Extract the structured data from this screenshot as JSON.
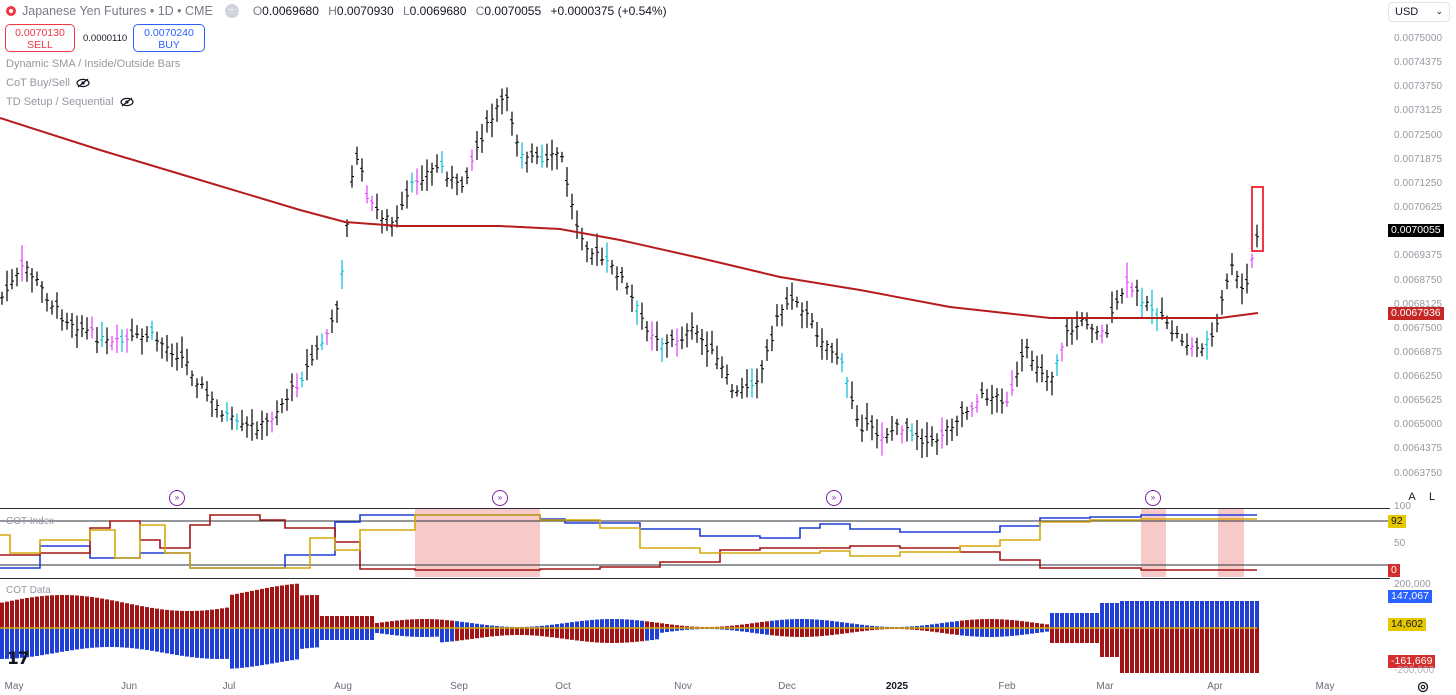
{
  "header": {
    "symbol_title": "Japanese Yen Futures • 1D • CME",
    "collapse_glyph": "−",
    "ohlc": {
      "o_label": "O",
      "o_value": "0.0069680",
      "h_label": "H",
      "h_value": "0.0070930",
      "l_label": "L",
      "l_value": "0.0069680",
      "c_label": "C",
      "c_value": "0.0070055",
      "change": "+0.0000375 (+0.54%)"
    }
  },
  "trade": {
    "sell_price": "0.0070130",
    "sell_label": "SELL",
    "spread": "0.0000110",
    "buy_price": "0.0070240",
    "buy_label": "BUY"
  },
  "indicators": {
    "sma": "Dynamic SMA / Inside/Outside Bars",
    "cot_buysell": "CoT Buy/Sell",
    "td": "TD Setup / Sequential"
  },
  "currency_select": "USD",
  "price_axis": [
    "0.0075000",
    "0.0074375",
    "0.0073750",
    "0.0073125",
    "0.0072500",
    "0.0071875",
    "0.0071250",
    "0.0070625",
    "0.0069375",
    "0.0068750",
    "0.0068125",
    "0.0067500",
    "0.0066875",
    "0.0066250",
    "0.0065625",
    "0.0065000",
    "0.0064375",
    "0.0063750"
  ],
  "price_tags": {
    "last": "0.0070055",
    "sma": "0.0067936"
  },
  "cot_index": {
    "label": "COT Index",
    "axis_top": "100",
    "axis_mid": "50",
    "tag_92": "92",
    "tag_0": "0"
  },
  "cot_data": {
    "label": "COT Data",
    "axis_top": "200,000",
    "tag_long": "147,067",
    "tag_mid": "14,602",
    "tag_short": "-161,669",
    "axis_bottom": "-200,000"
  },
  "axis_buttons": {
    "auto": "A",
    "log": "L"
  },
  "x_axis": [
    {
      "label": "May"
    },
    {
      "label": "Jun"
    },
    {
      "label": "Jul"
    },
    {
      "label": "Aug"
    },
    {
      "label": "Sep"
    },
    {
      "label": "Oct"
    },
    {
      "label": "Nov"
    },
    {
      "label": "Dec"
    },
    {
      "label": "2025",
      "bold": true
    },
    {
      "label": "Feb"
    },
    {
      "label": "Mar"
    },
    {
      "label": "Apr"
    },
    {
      "label": "May"
    }
  ],
  "colors": {
    "sma_line": "#b71c1c",
    "bar_up": "#000000",
    "bar_cyan": "#00bcd4",
    "bar_magenta": "#e040fb",
    "cot_blue": "#1f3fd6",
    "cot_red": "#a31515",
    "cot_yellow": "#d4a90c",
    "highlight": "#f8c9c9",
    "last_tag": "#000000",
    "sma_tag": "#c62828",
    "long_tag": "#2962ff",
    "mid_tag": "#e6c800",
    "short_tag": "#d32f2f"
  }
}
